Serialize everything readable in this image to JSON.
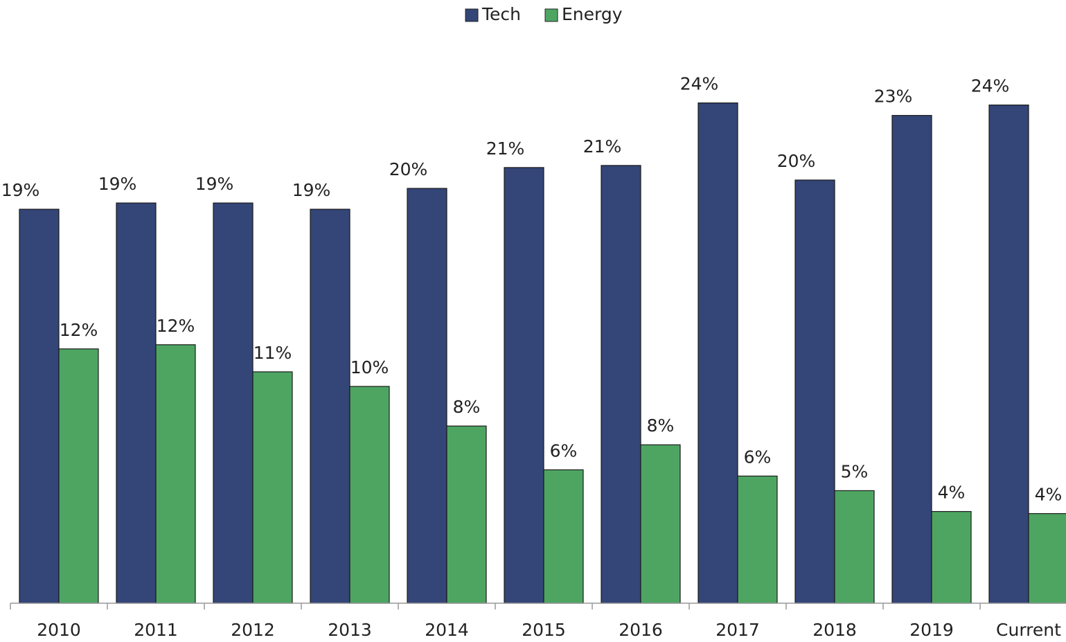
{
  "chart_data": {
    "type": "bar",
    "categories": [
      "2010",
      "2011",
      "2012",
      "2013",
      "2014",
      "2015",
      "2016",
      "2017",
      "2018",
      "2019",
      "Current"
    ],
    "series": [
      {
        "name": "Tech",
        "color": "#344577",
        "values": [
          18.9,
          19.2,
          19.2,
          18.9,
          19.9,
          20.9,
          21.0,
          24.0,
          20.3,
          23.4,
          23.9
        ],
        "value_labels": [
          "19%",
          "19%",
          "19%",
          "19%",
          "20%",
          "21%",
          "21%",
          "24%",
          "20%",
          "23%",
          "24%"
        ]
      },
      {
        "name": "Energy",
        "color": "#4ea562",
        "values": [
          12.2,
          12.4,
          11.1,
          10.4,
          8.5,
          6.4,
          7.6,
          6.1,
          5.4,
          4.4,
          4.3
        ],
        "value_labels": [
          "12%",
          "12%",
          "11%",
          "10%",
          "8%",
          "6%",
          "8%",
          "6%",
          "5%",
          "4%",
          "4%"
        ]
      }
    ],
    "legend": "top"
  }
}
